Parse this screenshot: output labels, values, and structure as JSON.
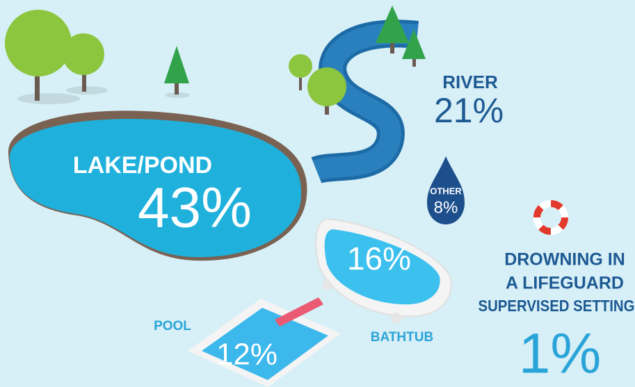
{
  "items": [
    {
      "label": "LAKE/POND",
      "value": "43%"
    },
    {
      "label": "RIVER",
      "value": "21%"
    },
    {
      "label": "OTHER",
      "value": "8%"
    },
    {
      "label": "BATHTUB",
      "value": "16%"
    },
    {
      "label": "POOL",
      "value": "12%"
    }
  ],
  "lifeguard": {
    "lines": [
      "DROWNING IN",
      "A LIFEGUARD",
      "SUPERVISED SETTING"
    ],
    "value": "1%"
  }
}
